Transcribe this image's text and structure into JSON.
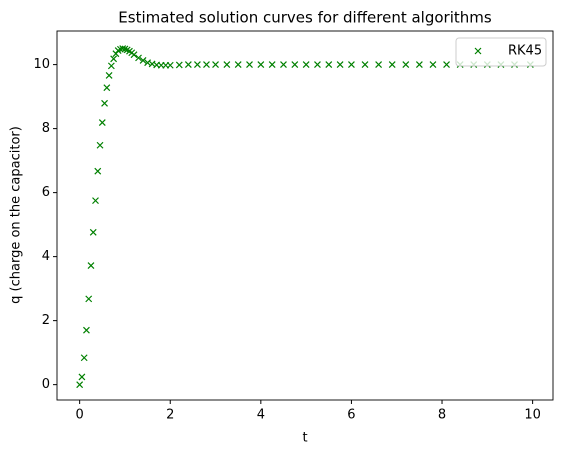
{
  "chart_data": {
    "type": "scatter",
    "title": "Estimated solution curves for different algorithms",
    "x_label": "t",
    "y_label": "q (charge on the capacitor)",
    "series": [
      {
        "name": "RK45",
        "color": "#008000",
        "marker": "x",
        "x": [
          0,
          0.05,
          0.1,
          0.15,
          0.2,
          0.25,
          0.3,
          0.35,
          0.4,
          0.45,
          0.5,
          0.55,
          0.6,
          0.65,
          0.7,
          0.75,
          0.8,
          0.85,
          0.9,
          0.95,
          1.0,
          1.05,
          1.1,
          1.15,
          1.2,
          1.3,
          1.4,
          1.5,
          1.6,
          1.7,
          1.8,
          1.9,
          2.0,
          2.2,
          2.4,
          2.6,
          2.8,
          3.0,
          3.25,
          3.5,
          3.75,
          4.0,
          4.25,
          4.5,
          4.75,
          5.0,
          5.25,
          5.5,
          5.75,
          6.0,
          6.3,
          6.6,
          6.9,
          7.2,
          7.5,
          7.8,
          8.1,
          8.4,
          8.7,
          9.0,
          9.3,
          9.6,
          9.95
        ],
        "values": [
          0,
          0.24,
          0.84,
          1.7,
          2.68,
          3.72,
          4.76,
          5.75,
          6.67,
          7.48,
          8.19,
          8.79,
          9.28,
          9.66,
          9.96,
          10.18,
          10.34,
          10.44,
          10.48,
          10.5,
          10.49,
          10.46,
          10.42,
          10.37,
          10.31,
          10.21,
          10.13,
          10.06,
          10.02,
          9.99,
          9.98,
          9.98,
          9.98,
          9.99,
          10,
          10,
          10,
          10,
          10,
          10,
          10,
          10,
          10,
          10,
          10,
          10,
          10,
          10,
          10,
          10,
          10,
          10,
          10,
          10,
          10,
          10,
          10,
          10,
          10,
          10,
          10,
          10,
          10
        ]
      }
    ],
    "xlim": [
      -0.5,
      10.45
    ],
    "ylim": [
      -0.48,
      11.05
    ],
    "xticks": [
      0,
      2,
      4,
      6,
      8,
      10
    ],
    "yticks": [
      0,
      2,
      4,
      6,
      8,
      10
    ],
    "grid": false,
    "legend": "upper right"
  }
}
